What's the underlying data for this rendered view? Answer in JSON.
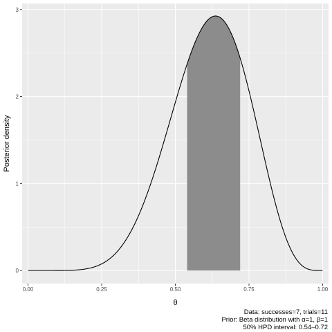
{
  "chart_data": {
    "type": "area",
    "xlabel": "θ",
    "ylabel": "Posterior density",
    "xlim": [
      -0.02,
      1.02
    ],
    "ylim": [
      -0.15,
      3.07
    ],
    "x_ticks": [
      0.0,
      0.25,
      0.5,
      0.75,
      1.0
    ],
    "x_tick_labels": [
      "0.00",
      "0.25",
      "0.50",
      "0.75",
      "1.00"
    ],
    "y_ticks": [
      0,
      1,
      2,
      3
    ],
    "y_tick_labels": [
      "0",
      "1",
      "2",
      "3"
    ],
    "distribution": {
      "family": "beta",
      "alpha": 8,
      "beta": 5
    },
    "hpd_interval": [
      0.54,
      0.72
    ],
    "grid": true,
    "colors": {
      "panel": "#ebebeb",
      "grid": "#ffffff",
      "curve": "#000000",
      "hpd_fill": "#8c8c8c"
    },
    "caption_lines": [
      "Data: successes=7, trials=11",
      "Prior: Beta distribution with α=1, β=1",
      "50% HPD interval: 0.54–0.72"
    ]
  }
}
